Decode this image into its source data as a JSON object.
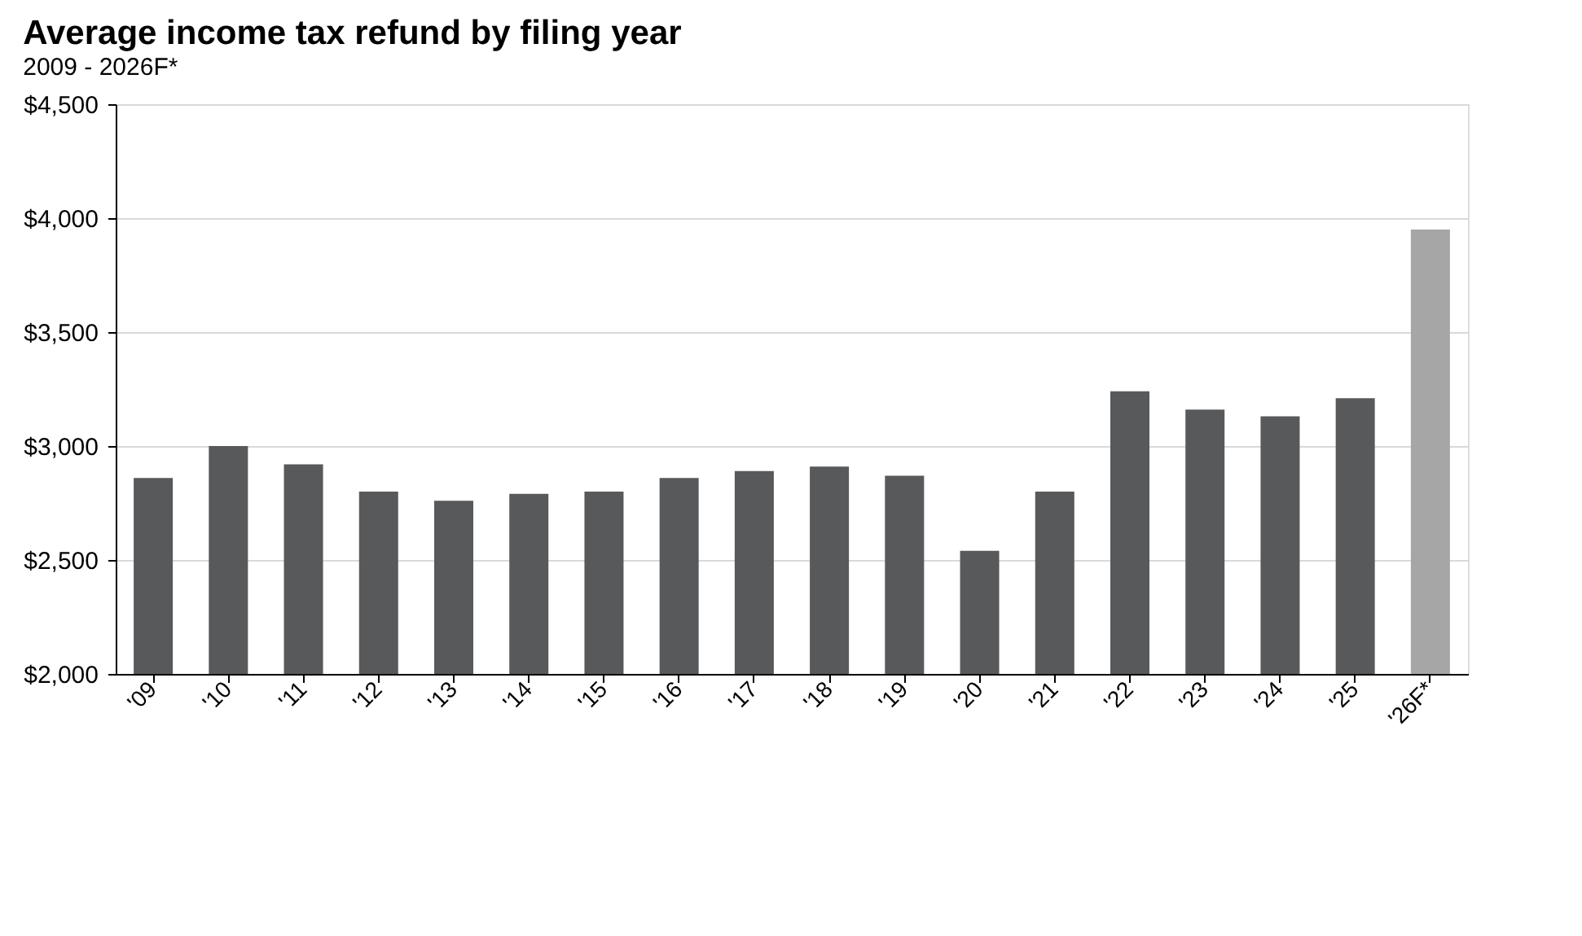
{
  "chart_data": {
    "type": "bar",
    "title": "Average income tax refund by filing year",
    "subtitle": "2009 - 2026F*",
    "categories": [
      "'09",
      "'10",
      "'11",
      "'12",
      "'13",
      "'14",
      "'15",
      "'16",
      "'17",
      "'18",
      "'19",
      "'20",
      "'21",
      "'22",
      "'23",
      "'24",
      "'25",
      "'26F*"
    ],
    "values": [
      2860,
      3000,
      2920,
      2800,
      2760,
      2790,
      2800,
      2860,
      2890,
      2910,
      2870,
      2540,
      2800,
      3240,
      3160,
      3130,
      3210,
      3950
    ],
    "colors": [
      "#58595b",
      "#58595b",
      "#58595b",
      "#58595b",
      "#58595b",
      "#58595b",
      "#58595b",
      "#58595b",
      "#58595b",
      "#58595b",
      "#58595b",
      "#58595b",
      "#58595b",
      "#58595b",
      "#58595b",
      "#58595b",
      "#58595b",
      "#a6a6a6"
    ],
    "ylim": [
      2000,
      4500
    ],
    "yticks": [
      {
        "value": 2000,
        "label": "$2,000"
      },
      {
        "value": 2500,
        "label": "$2,500"
      },
      {
        "value": 3000,
        "label": "$3,000"
      },
      {
        "value": 3500,
        "label": "$3,500"
      },
      {
        "value": 4000,
        "label": "$4,000"
      },
      {
        "value": 4500,
        "label": "$4,500"
      }
    ],
    "grid": "y"
  }
}
